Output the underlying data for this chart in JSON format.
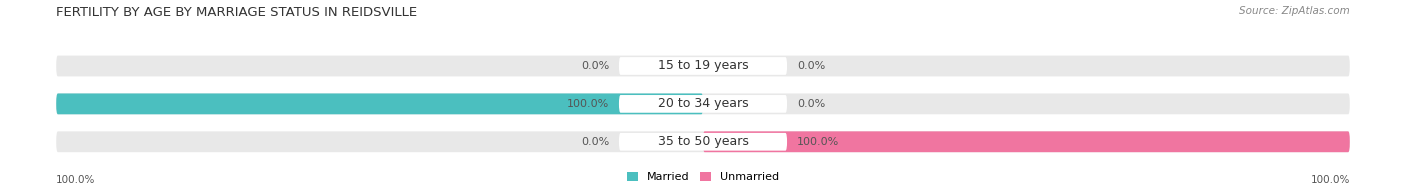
{
  "title": "FERTILITY BY AGE BY MARRIAGE STATUS IN REIDSVILLE",
  "source": "Source: ZipAtlas.com",
  "categories": [
    "15 to 19 years",
    "20 to 34 years",
    "35 to 50 years"
  ],
  "married": [
    0.0,
    100.0,
    0.0
  ],
  "unmarried": [
    0.0,
    0.0,
    100.0
  ],
  "married_color": "#4bbfbf",
  "unmarried_color": "#f075a0",
  "bar_bg_color": "#e8e8e8",
  "background_color": "#ffffff",
  "xlim": [
    -100,
    100
  ],
  "bar_height": 0.55,
  "title_fontsize": 9.5,
  "label_fontsize": 8,
  "cat_fontsize": 9,
  "tick_fontsize": 7.5,
  "legend_fontsize": 8,
  "bottom_left_label": "100.0%",
  "bottom_right_label": "100.0%"
}
